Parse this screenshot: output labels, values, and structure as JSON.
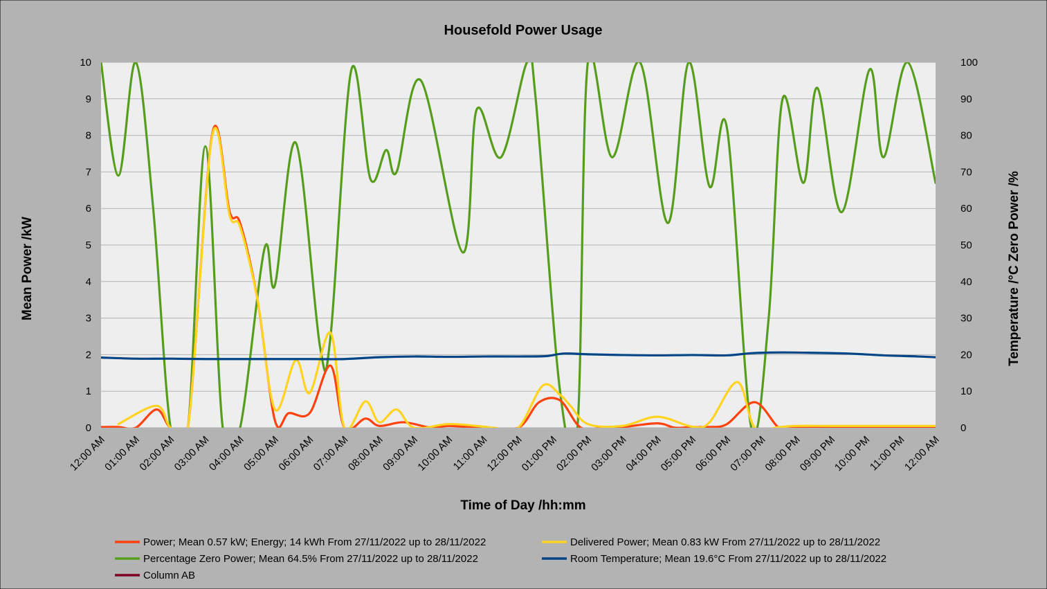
{
  "colors": {
    "background": "#b3b3b3",
    "plot_area": "#eeeeee",
    "gridline": "#b3b3b3",
    "power": "#ff420e",
    "delivered": "#ffd320",
    "zero_power": "#579d1c",
    "temperature": "#004586",
    "column_ab": "#7e0021"
  },
  "chart_data": {
    "type": "line",
    "title": "Housefold Power Usage",
    "xlabel": "Time of Day /hh:mm",
    "ylabel": "Mean Power /kW",
    "y2label": "Temperature /°C Zero Power /%",
    "xlim": [
      0,
      24
    ],
    "ylim": [
      0,
      10
    ],
    "y2lim": [
      0,
      100
    ],
    "grid": true,
    "legend_position": "bottom",
    "x_ticks": [
      "12:00 AM",
      "01:00 AM",
      "02:00 AM",
      "03:00 AM",
      "04:00 AM",
      "05:00 AM",
      "06:00 AM",
      "07:00 AM",
      "08:00 AM",
      "09:00 AM",
      "10:00 AM",
      "11:00 AM",
      "12:00 PM",
      "01:00 PM",
      "02:00 PM",
      "03:00 PM",
      "04:00 PM",
      "05:00 PM",
      "06:00 PM",
      "07:00 PM",
      "08:00 PM",
      "09:00 PM",
      "10:00 PM",
      "11:00 PM",
      "12:00 AM"
    ],
    "y_ticks": [
      "0",
      "1",
      "2",
      "3",
      "4",
      "5",
      "6",
      "7",
      "8",
      "9",
      "10"
    ],
    "y2_ticks": [
      "0",
      "10",
      "20",
      "30",
      "40",
      "50",
      "60",
      "70",
      "80",
      "90",
      "100"
    ],
    "series": [
      {
        "name": "Percentage Zero Power; Mean 64.5% From 27/11/2022 up to 28/11/2022",
        "axis": "y2",
        "color_key": "zero_power",
        "x": [
          0,
          0.5,
          1,
          1.5,
          2,
          2.5,
          3,
          3.5,
          4,
          4.7,
          5,
          5.6,
          6.3,
          6.6,
          7.2,
          7.75,
          8.2,
          8.5,
          9.2,
          10.4,
          10.8,
          11.5,
          12.25,
          12.5,
          13.2,
          13.7,
          14,
          14.7,
          15.5,
          16.3,
          16.9,
          17.5,
          18,
          18.7,
          19.2,
          19.6,
          20.2,
          20.6,
          21.3,
          22.1,
          22.5,
          23.2,
          24
        ],
        "y": [
          100,
          69,
          100,
          60,
          0,
          0,
          77,
          0,
          0,
          49,
          39,
          78,
          22,
          25,
          98,
          68,
          76,
          70,
          95,
          48,
          87,
          74,
          100,
          90,
          10,
          0,
          100,
          74,
          100,
          56,
          100,
          66,
          82,
          0,
          30,
          90,
          67,
          93,
          59,
          98,
          74,
          100,
          67
        ]
      },
      {
        "name": "Power; Mean 0.57 kW; Energy; 14 kWh From 27/11/2022 up to 28/11/2022",
        "axis": "y",
        "color_key": "power",
        "x": [
          0,
          0.5,
          1,
          1.6,
          2,
          2.5,
          3.2,
          3.7,
          4,
          4.5,
          5,
          5.4,
          6,
          6.6,
          7,
          7.6,
          8,
          8.7,
          9.5,
          10,
          11,
          12,
          12.6,
          13.2,
          13.8,
          14.5,
          15,
          16,
          16.5,
          17,
          17.5,
          18,
          18.8,
          19.5,
          20,
          21,
          22,
          23,
          24
        ],
        "y": [
          0.02,
          0.02,
          0.0,
          0.5,
          0.0,
          0.0,
          8.05,
          5.9,
          5.6,
          3.5,
          0.2,
          0.4,
          0.4,
          1.7,
          0.0,
          0.25,
          0.05,
          0.15,
          0.0,
          0.05,
          0.0,
          0.0,
          0.7,
          0.75,
          0.0,
          0.02,
          0.02,
          0.12,
          0.0,
          0.02,
          0.02,
          0.1,
          0.7,
          0.0,
          0.02,
          0.02,
          0.02,
          0.02,
          0.02
        ]
      },
      {
        "name": "Delivered Power; Mean 0.83 kW From 27/11/2022 up to 28/11/2022",
        "axis": "y",
        "color_key": "delivered",
        "x": [
          0.5,
          1.6,
          2,
          2.5,
          3.2,
          3.7,
          4,
          4.5,
          5,
          5.6,
          6,
          6.6,
          7,
          7.6,
          8,
          8.5,
          9,
          10,
          11,
          11.3,
          12,
          12.7,
          13.2,
          13.5,
          14,
          15,
          16,
          17,
          17.5,
          18.3,
          18.8,
          19.5,
          20,
          21,
          22,
          23,
          24
        ],
        "y": [
          0.1,
          0.6,
          0.0,
          0.0,
          8.0,
          5.8,
          5.5,
          3.5,
          0.5,
          1.85,
          0.95,
          2.6,
          0.0,
          0.72,
          0.15,
          0.5,
          0.0,
          0.1,
          0.03,
          0.0,
          0.0,
          1.15,
          0.9,
          0.6,
          0.1,
          0.05,
          0.3,
          0.03,
          0.15,
          1.25,
          0.0,
          0.02,
          0.05,
          0.05,
          0.05,
          0.05,
          0.05
        ]
      },
      {
        "name": "Room Temperature; Mean 19.6°C From 27/11/2022 up to 28/11/2022",
        "axis": "y2",
        "color_key": "temperature",
        "x": [
          0,
          1,
          2,
          3,
          4,
          5,
          6,
          7,
          8,
          9,
          10,
          11,
          12,
          12.8,
          13.3,
          14,
          15,
          16,
          17,
          18,
          18.7,
          19.5,
          20.5,
          21.5,
          22.5,
          23.5,
          24
        ],
        "y": [
          19.2,
          18.9,
          18.9,
          18.8,
          18.8,
          18.8,
          18.8,
          18.8,
          19.3,
          19.5,
          19.4,
          19.5,
          19.5,
          19.6,
          20.3,
          20.1,
          19.9,
          19.8,
          19.9,
          19.8,
          20.4,
          20.6,
          20.5,
          20.3,
          19.8,
          19.5,
          19.3
        ]
      },
      {
        "name": "Column AB",
        "axis": "y",
        "color_key": "column_ab",
        "x": [],
        "y": []
      }
    ]
  }
}
